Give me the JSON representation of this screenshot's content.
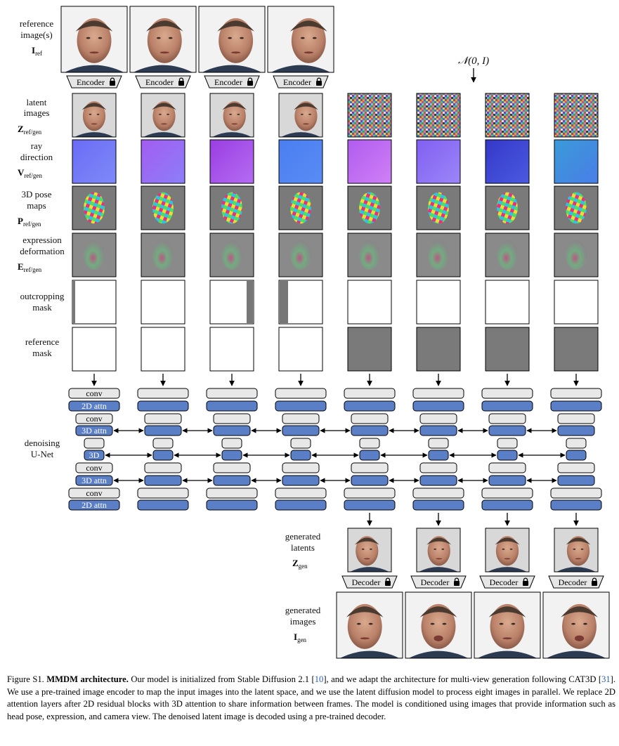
{
  "row_labels": {
    "reference": {
      "line1": "reference",
      "line2": "image(s)",
      "symbol": "I",
      "subscript": "ref"
    },
    "latent": {
      "line1": "latent",
      "line2": "images",
      "symbol": "Z",
      "subscript": "ref/gen"
    },
    "ray": {
      "line1": "ray",
      "line2": "direction",
      "symbol": "V",
      "subscript": "ref/gen"
    },
    "pose": {
      "line1": "3D pose",
      "line2": "maps",
      "symbol": "P",
      "subscript": "ref/gen"
    },
    "expression": {
      "line1": "expression",
      "line2": "deformation",
      "symbol": "E",
      "subscript": "ref/gen"
    },
    "outcrop": {
      "line1": "outcropping",
      "line2": "mask"
    },
    "refmask": {
      "line1": "reference",
      "line2": "mask"
    },
    "unet": {
      "line1": "denoising",
      "line2": "U-Net"
    },
    "gen_latents": {
      "line1": "generated",
      "line2": "latents",
      "symbol": "Z",
      "subscript": "gen"
    },
    "gen_images": {
      "line1": "generated",
      "line2": "images",
      "symbol": "I",
      "subscript": "gen"
    }
  },
  "noise_label": "𝒩(0, I)",
  "blocks": {
    "encoder": "Encoder",
    "decoder": "Decoder",
    "conv": "conv",
    "attn2d": "2D attn",
    "attn3d": "3D attn",
    "mid3d": "3D"
  },
  "lock_icon": "lock-icon",
  "columns": {
    "count": 8,
    "reference_count": 4,
    "ray_colors": [
      [
        "#6a6cf5",
        "#7f8af8"
      ],
      [
        "#a35cf2",
        "#8c7ff8"
      ],
      [
        "#9a3ee2",
        "#b46cf2"
      ],
      [
        "#4a7ef0",
        "#5a8cf5"
      ],
      [
        "#b05cf0",
        "#d080f5"
      ],
      [
        "#8060f2",
        "#9c86f8"
      ],
      [
        "#3438c8",
        "#4a5ae0"
      ],
      [
        "#3a9ad8",
        "#4a7ee8"
      ]
    ],
    "outcrop_strip": [
      "left-thin",
      "none",
      "right",
      "left",
      "none",
      "none",
      "none",
      "none"
    ],
    "reference_mask": [
      "white",
      "white",
      "white",
      "white",
      "gray",
      "gray",
      "gray",
      "gray"
    ]
  },
  "caption": {
    "figure_no": "Figure S1.",
    "title": "MMDM architecture.",
    "text_1": " Our model is initialized from Stable Diffusion 2.1 [",
    "cite_1": "10",
    "text_2": "], and we adapt the architecture for multi-view generation following CAT3D [",
    "cite_2": "31",
    "text_3": "]. We use a pre-trained image encoder to map the input images into the latent space, and we use the latent diffusion model to process eight images in parallel. We replace 2D attention layers after 2D residual blocks with 3D attention to share information between frames. The model is conditioned using images that provide information such as head pose, expression, and camera view. The denoised latent image is decoded using a pre-trained decoder."
  }
}
